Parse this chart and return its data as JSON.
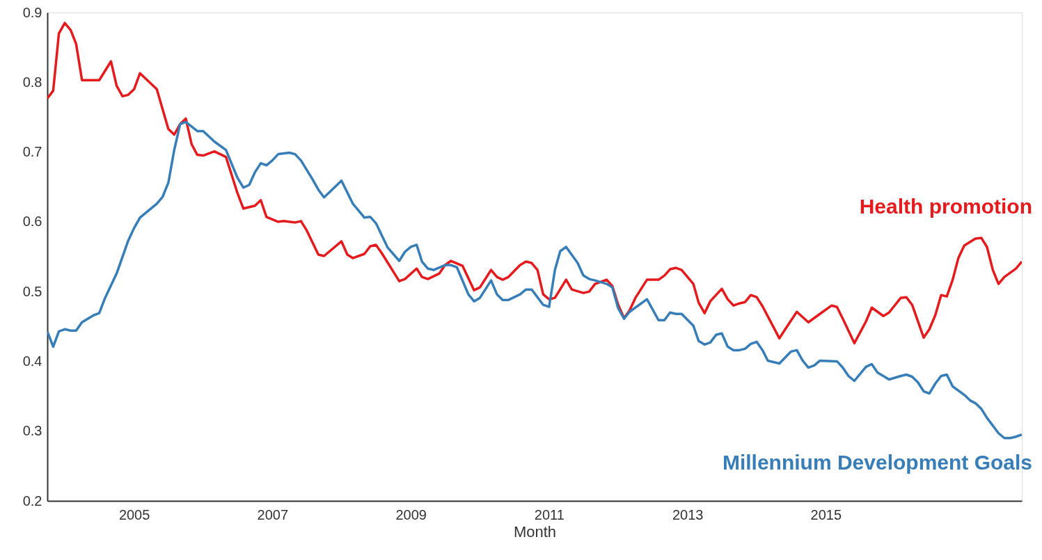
{
  "chart_data": {
    "type": "line",
    "xlabel": "Month",
    "xlim": [
      "2003-10",
      "2017-11"
    ],
    "xticks": [
      "2005",
      "2007",
      "2009",
      "2011",
      "2013",
      "2015"
    ],
    "ylim": [
      0.2,
      0.9
    ],
    "yticks": [
      0.2,
      0.3,
      0.4,
      0.5,
      0.6,
      0.7,
      0.8,
      0.9
    ],
    "grid": false,
    "line_style": "solid",
    "series": [
      {
        "name": "Health promotion",
        "color": "#e41a1c",
        "x": [
          "2003-10",
          "2003-11",
          "2003-12",
          "2004-01",
          "2004-02",
          "2004-03",
          "2004-04",
          "2004-07",
          "2004-09",
          "2004-10",
          "2004-11",
          "2004-12",
          "2005-01",
          "2005-02",
          "2005-05",
          "2005-07",
          "2005-08",
          "2005-09",
          "2005-10",
          "2005-11",
          "2005-12",
          "2006-01",
          "2006-03",
          "2006-05",
          "2006-07",
          "2006-08",
          "2006-10",
          "2006-11",
          "2006-12",
          "2007-02",
          "2007-03",
          "2007-05",
          "2007-06",
          "2007-07",
          "2007-09",
          "2007-10",
          "2008-01",
          "2008-02",
          "2008-03",
          "2008-05",
          "2008-06",
          "2008-07",
          "2008-08",
          "2008-11",
          "2008-12",
          "2009-02",
          "2009-03",
          "2009-04",
          "2009-06",
          "2009-07",
          "2009-08",
          "2009-10",
          "2009-12",
          "2010-01",
          "2010-03",
          "2010-04",
          "2010-05",
          "2010-06",
          "2010-08",
          "2010-09",
          "2010-10",
          "2010-11",
          "2010-12",
          "2011-01",
          "2011-02",
          "2011-04",
          "2011-05",
          "2011-07",
          "2011-08",
          "2011-09",
          "2011-11",
          "2011-12",
          "2012-01",
          "2012-02",
          "2012-03",
          "2012-04",
          "2012-06",
          "2012-08",
          "2012-09",
          "2012-10",
          "2012-11",
          "2012-12",
          "2013-02",
          "2013-03",
          "2013-04",
          "2013-05",
          "2013-07",
          "2013-08",
          "2013-09",
          "2013-10",
          "2013-11",
          "2013-12",
          "2014-01",
          "2014-02",
          "2014-05",
          "2014-06",
          "2014-08",
          "2014-10",
          "2014-12",
          "2015-02",
          "2015-03",
          "2015-04",
          "2015-06",
          "2015-08",
          "2015-09",
          "2015-11",
          "2015-12",
          "2016-02",
          "2016-03",
          "2016-04",
          "2016-06",
          "2016-07",
          "2016-08",
          "2016-09",
          "2016-10",
          "2016-11",
          "2016-12",
          "2017-01",
          "2017-03",
          "2017-04",
          "2017-05",
          "2017-06",
          "2017-07",
          "2017-08",
          "2017-10",
          "2017-11"
        ],
        "values": [
          0.777,
          0.788,
          0.87,
          0.885,
          0.875,
          0.855,
          0.803,
          0.803,
          0.83,
          0.795,
          0.78,
          0.782,
          0.79,
          0.813,
          0.79,
          0.733,
          0.725,
          0.74,
          0.748,
          0.711,
          0.696,
          0.695,
          0.701,
          0.693,
          0.641,
          0.619,
          0.623,
          0.631,
          0.607,
          0.6,
          0.601,
          0.599,
          0.601,
          0.588,
          0.553,
          0.551,
          0.572,
          0.553,
          0.548,
          0.554,
          0.565,
          0.567,
          0.555,
          0.515,
          0.518,
          0.533,
          0.521,
          0.518,
          0.526,
          0.538,
          0.544,
          0.537,
          0.502,
          0.506,
          0.531,
          0.521,
          0.517,
          0.521,
          0.538,
          0.543,
          0.541,
          0.531,
          0.496,
          0.489,
          0.491,
          0.517,
          0.503,
          0.498,
          0.5,
          0.511,
          0.517,
          0.508,
          0.481,
          0.462,
          0.473,
          0.491,
          0.517,
          0.517,
          0.523,
          0.532,
          0.534,
          0.531,
          0.511,
          0.484,
          0.469,
          0.486,
          0.504,
          0.489,
          0.48,
          0.483,
          0.485,
          0.495,
          0.492,
          0.479,
          0.433,
          0.446,
          0.471,
          0.456,
          0.468,
          0.48,
          0.478,
          0.461,
          0.426,
          0.457,
          0.477,
          0.465,
          0.47,
          0.491,
          0.492,
          0.481,
          0.434,
          0.446,
          0.466,
          0.495,
          0.493,
          0.517,
          0.548,
          0.566,
          0.576,
          0.577,
          0.564,
          0.531,
          0.511,
          0.521,
          0.533,
          0.543
        ]
      },
      {
        "name": "Millennium Development Goals",
        "color": "#377eb8",
        "x": [
          "2003-10",
          "2003-11",
          "2003-12",
          "2004-01",
          "2004-02",
          "2004-03",
          "2004-04",
          "2004-06",
          "2004-07",
          "2004-08",
          "2004-10",
          "2004-12",
          "2005-01",
          "2005-02",
          "2005-05",
          "2005-06",
          "2005-07",
          "2005-08",
          "2005-09",
          "2005-10",
          "2005-12",
          "2006-01",
          "2006-03",
          "2006-05",
          "2006-07",
          "2006-08",
          "2006-09",
          "2006-10",
          "2006-11",
          "2006-12",
          "2007-01",
          "2007-02",
          "2007-04",
          "2007-05",
          "2007-06",
          "2007-08",
          "2007-09",
          "2007-10",
          "2008-01",
          "2008-03",
          "2008-04",
          "2008-05",
          "2008-06",
          "2008-07",
          "2008-09",
          "2008-11",
          "2008-12",
          "2009-01",
          "2009-02",
          "2009-03",
          "2009-04",
          "2009-05",
          "2009-07",
          "2009-08",
          "2009-09",
          "2009-11",
          "2009-12",
          "2010-01",
          "2010-03",
          "2010-04",
          "2010-05",
          "2010-06",
          "2010-08",
          "2010-09",
          "2010-10",
          "2010-12",
          "2011-01",
          "2011-02",
          "2011-03",
          "2011-04",
          "2011-06",
          "2011-07",
          "2011-08",
          "2011-09",
          "2011-11",
          "2011-12",
          "2012-01",
          "2012-02",
          "2012-03",
          "2012-06",
          "2012-08",
          "2012-09",
          "2012-10",
          "2012-11",
          "2012-12",
          "2013-02",
          "2013-03",
          "2013-04",
          "2013-05",
          "2013-06",
          "2013-07",
          "2013-08",
          "2013-09",
          "2013-10",
          "2013-11",
          "2013-12",
          "2014-01",
          "2014-02",
          "2014-03",
          "2014-05",
          "2014-07",
          "2014-08",
          "2014-09",
          "2014-10",
          "2014-11",
          "2014-12",
          "2015-03",
          "2015-04",
          "2015-05",
          "2015-06",
          "2015-08",
          "2015-09",
          "2015-10",
          "2015-12",
          "2016-02",
          "2016-03",
          "2016-04",
          "2016-05",
          "2016-06",
          "2016-07",
          "2016-08",
          "2016-09",
          "2016-10",
          "2016-11",
          "2017-01",
          "2017-02",
          "2017-03",
          "2017-04",
          "2017-05",
          "2017-07",
          "2017-08",
          "2017-09",
          "2017-10",
          "2017-11"
        ],
        "values": [
          0.443,
          0.421,
          0.443,
          0.446,
          0.444,
          0.444,
          0.456,
          0.466,
          0.469,
          0.491,
          0.526,
          0.573,
          0.591,
          0.606,
          0.626,
          0.636,
          0.656,
          0.703,
          0.74,
          0.743,
          0.73,
          0.73,
          0.715,
          0.703,
          0.663,
          0.649,
          0.653,
          0.671,
          0.684,
          0.681,
          0.688,
          0.697,
          0.699,
          0.697,
          0.688,
          0.661,
          0.646,
          0.635,
          0.659,
          0.626,
          0.616,
          0.606,
          0.607,
          0.598,
          0.563,
          0.544,
          0.557,
          0.564,
          0.567,
          0.543,
          0.533,
          0.531,
          0.538,
          0.538,
          0.535,
          0.496,
          0.486,
          0.491,
          0.516,
          0.496,
          0.488,
          0.488,
          0.496,
          0.503,
          0.503,
          0.481,
          0.478,
          0.531,
          0.558,
          0.564,
          0.541,
          0.523,
          0.518,
          0.516,
          0.511,
          0.506,
          0.476,
          0.461,
          0.471,
          0.489,
          0.459,
          0.459,
          0.47,
          0.468,
          0.468,
          0.451,
          0.429,
          0.424,
          0.427,
          0.438,
          0.44,
          0.421,
          0.416,
          0.416,
          0.418,
          0.425,
          0.428,
          0.416,
          0.401,
          0.397,
          0.414,
          0.416,
          0.401,
          0.391,
          0.394,
          0.401,
          0.4,
          0.391,
          0.379,
          0.372,
          0.392,
          0.396,
          0.384,
          0.374,
          0.379,
          0.381,
          0.378,
          0.37,
          0.357,
          0.354,
          0.368,
          0.379,
          0.381,
          0.364,
          0.352,
          0.344,
          0.34,
          0.332,
          0.319,
          0.297,
          0.29,
          0.29,
          0.292,
          0.295
        ]
      }
    ]
  }
}
